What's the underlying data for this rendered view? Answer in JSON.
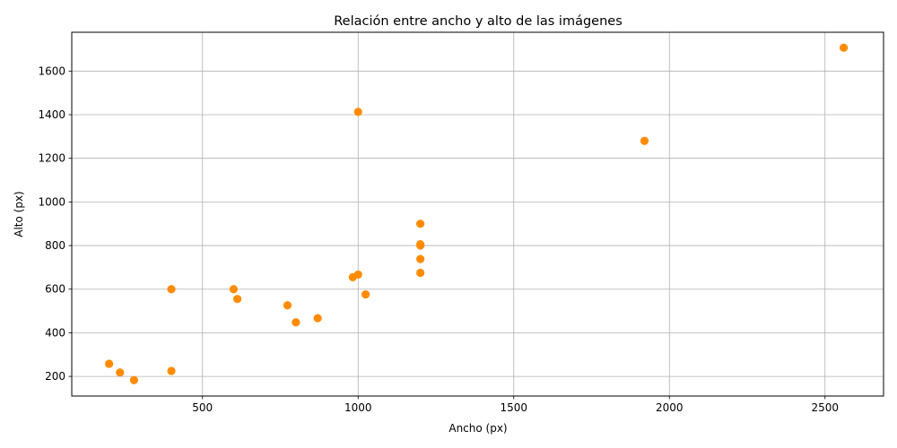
{
  "chart_data": {
    "type": "scatter",
    "title": "Relación entre ancho y alto de las imágenes",
    "xlabel": "Ancho (px)",
    "ylabel": "Alto (px)",
    "xlim": [
      80,
      2688
    ],
    "ylim": [
      110,
      1778
    ],
    "xticks": [
      500,
      1000,
      1500,
      2000,
      2500
    ],
    "yticks": [
      200,
      400,
      600,
      800,
      1000,
      1200,
      1400,
      1600
    ],
    "grid": true,
    "color": "#ff8c00",
    "points": [
      {
        "x": 200,
        "y": 258
      },
      {
        "x": 235,
        "y": 218
      },
      {
        "x": 280,
        "y": 183
      },
      {
        "x": 400,
        "y": 600
      },
      {
        "x": 400,
        "y": 225
      },
      {
        "x": 600,
        "y": 600
      },
      {
        "x": 612,
        "y": 555
      },
      {
        "x": 773,
        "y": 526
      },
      {
        "x": 800,
        "y": 448
      },
      {
        "x": 870,
        "y": 467
      },
      {
        "x": 983,
        "y": 655
      },
      {
        "x": 1000,
        "y": 667
      },
      {
        "x": 1000,
        "y": 1413
      },
      {
        "x": 1024,
        "y": 576
      },
      {
        "x": 1200,
        "y": 900
      },
      {
        "x": 1200,
        "y": 800
      },
      {
        "x": 1200,
        "y": 806
      },
      {
        "x": 1200,
        "y": 738
      },
      {
        "x": 1200,
        "y": 675
      },
      {
        "x": 1920,
        "y": 1280
      },
      {
        "x": 2560,
        "y": 1707
      }
    ]
  }
}
